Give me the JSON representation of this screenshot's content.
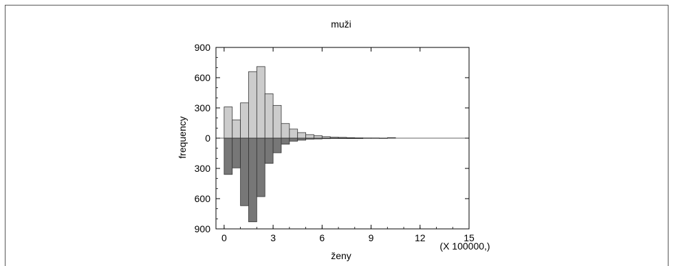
{
  "chart_data": {
    "type": "bar",
    "subtype": "back-to-back histogram",
    "title": "muži",
    "xlabel": "ženy",
    "ylabel": "frequency",
    "x_multiplier_label": "(X 100000,)",
    "xlim": [
      -0.5,
      15
    ],
    "ylim": [
      -900,
      900
    ],
    "x_ticks": [
      0,
      3,
      6,
      9,
      12,
      15
    ],
    "y_ticks": [
      900,
      600,
      300,
      0,
      300,
      600,
      900
    ],
    "bin_width": 0.5,
    "bin_starts": [
      0,
      0.5,
      1,
      1.5,
      2,
      2.5,
      3,
      3.5,
      4,
      4.5,
      5,
      5.5,
      6,
      6.5,
      7,
      7.5,
      8,
      8.5,
      9,
      9.5,
      10,
      10.5,
      11,
      11.5,
      12,
      12.5,
      13,
      13.5,
      14,
      14.5
    ],
    "series": [
      {
        "name": "muži",
        "color": "#cccccc",
        "direction": "up",
        "values": [
          310,
          180,
          350,
          660,
          710,
          440,
          325,
          145,
          90,
          55,
          35,
          25,
          15,
          10,
          8,
          5,
          3,
          2,
          2,
          1,
          5,
          0,
          0,
          0,
          0,
          0,
          0,
          0,
          0,
          0
        ]
      },
      {
        "name": "ženy",
        "color": "#777777",
        "direction": "down",
        "values": [
          360,
          295,
          670,
          830,
          580,
          250,
          145,
          60,
          30,
          20,
          10,
          8,
          5,
          3,
          2,
          1,
          1,
          0,
          0,
          0,
          0,
          0,
          0,
          0,
          0,
          0,
          0,
          0,
          0,
          0
        ]
      }
    ],
    "grid": false,
    "legend": "none"
  }
}
